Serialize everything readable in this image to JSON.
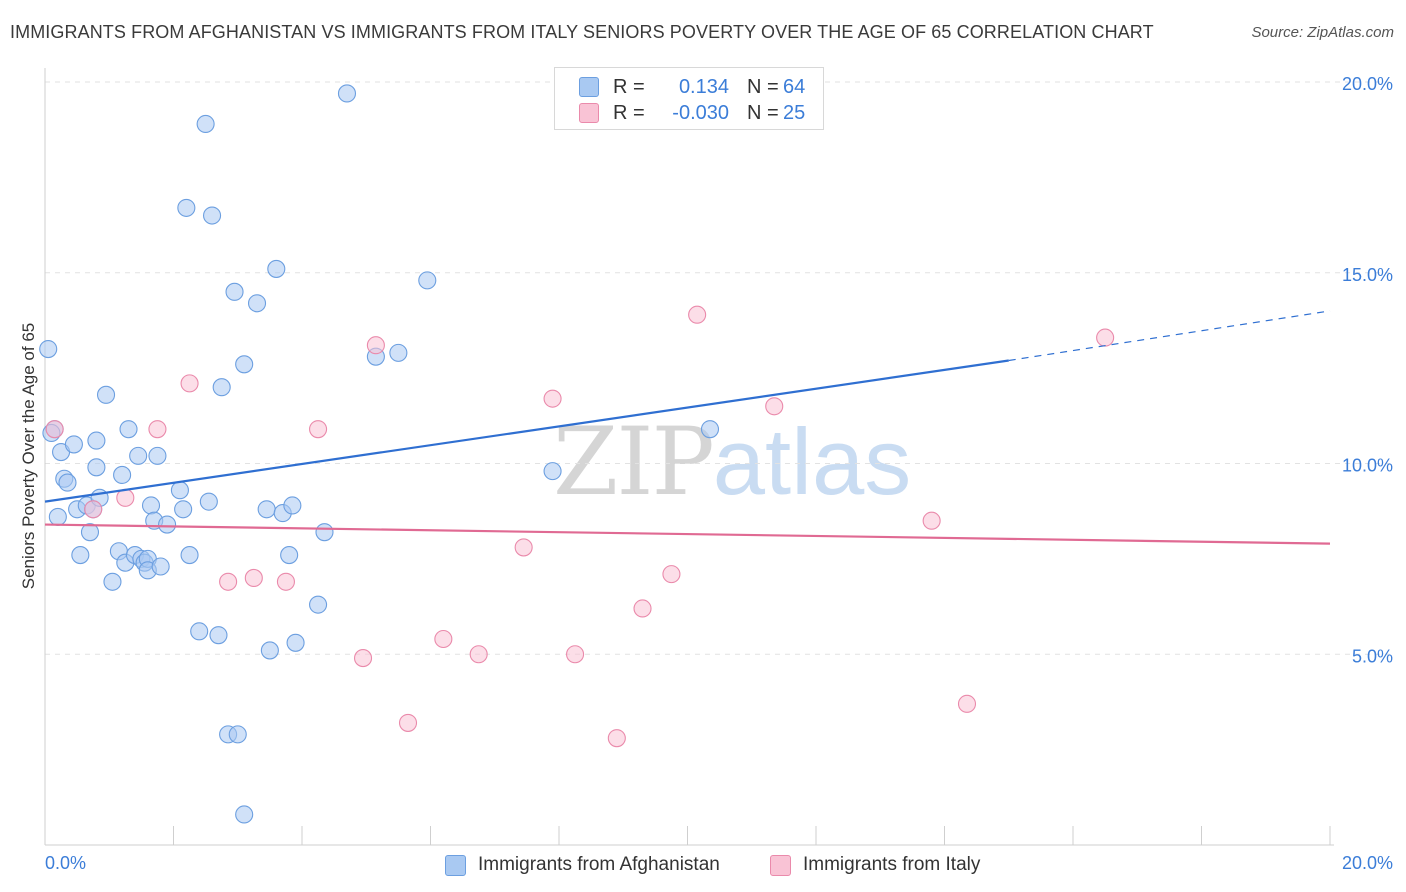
{
  "title": "IMMIGRANTS FROM AFGHANISTAN VS IMMIGRANTS FROM ITALY SENIORS POVERTY OVER THE AGE OF 65 CORRELATION CHART",
  "source": "Source: ZipAtlas.com",
  "watermark": {
    "zip": "ZIP",
    "atlas": "atlas"
  },
  "legend_top": [
    {
      "r_label": "R =",
      "r_value": "0.134",
      "n_label": "N =",
      "n_value": "64",
      "color": "#a9c9f2",
      "border": "#6c9fe0"
    },
    {
      "r_label": "R =",
      "r_value": "-0.030",
      "n_label": "N =",
      "n_value": "25",
      "color": "#f9c3d5",
      "border": "#ea8aab"
    }
  ],
  "legend_bottom": [
    {
      "label": "Immigrants from Afghanistan",
      "color": "#a9c9f2",
      "border": "#6c9fe0"
    },
    {
      "label": "Immigrants from Italy",
      "color": "#f9c3d5",
      "border": "#ea8aab"
    }
  ],
  "chart_data": {
    "type": "scatter",
    "title": "IMMIGRANTS FROM AFGHANISTAN VS IMMIGRANTS FROM ITALY SENIORS POVERTY OVER THE AGE OF 65 CORRELATION CHART",
    "xlabel": "",
    "ylabel": "Seniors Poverty Over the Age of 65",
    "xlim": [
      0,
      20
    ],
    "ylim": [
      0,
      20
    ],
    "x_tick_labels": [
      {
        "value": 0,
        "label": "0.0%"
      },
      {
        "value": 20,
        "label": "20.0%"
      }
    ],
    "y_tick_labels": [
      {
        "value": 5,
        "label": "5.0%"
      },
      {
        "value": 10,
        "label": "10.0%"
      },
      {
        "value": 15,
        "label": "15.0%"
      },
      {
        "value": 20,
        "label": "20.0%"
      }
    ],
    "grid": "horizontal dashed",
    "legend_placement": "bottom",
    "series": [
      {
        "name": "Immigrants from Afghanistan",
        "color": "#6c9fe0",
        "fill": "#a9c9f2",
        "trend": {
          "x": [
            0,
            15
          ],
          "y": [
            9.0,
            12.7
          ],
          "extended_dashed_to": [
            20,
            14.0
          ]
        },
        "points": [
          [
            0.05,
            13.0
          ],
          [
            0.15,
            10.9
          ],
          [
            0.2,
            8.6
          ],
          [
            0.25,
            10.3
          ],
          [
            0.3,
            9.6
          ],
          [
            0.35,
            9.5
          ],
          [
            0.45,
            10.5
          ],
          [
            0.5,
            8.8
          ],
          [
            0.55,
            7.6
          ],
          [
            0.65,
            8.9
          ],
          [
            0.7,
            8.2
          ],
          [
            0.75,
            8.8
          ],
          [
            0.8,
            9.9
          ],
          [
            0.8,
            10.6
          ],
          [
            0.85,
            9.1
          ],
          [
            0.95,
            11.8
          ],
          [
            1.05,
            6.9
          ],
          [
            1.15,
            7.7
          ],
          [
            1.2,
            9.7
          ],
          [
            1.25,
            7.4
          ],
          [
            1.3,
            10.9
          ],
          [
            1.4,
            7.6
          ],
          [
            1.45,
            10.2
          ],
          [
            1.5,
            7.5
          ],
          [
            1.55,
            7.4
          ],
          [
            1.6,
            7.5
          ],
          [
            1.6,
            7.2
          ],
          [
            1.65,
            8.9
          ],
          [
            1.7,
            8.5
          ],
          [
            1.75,
            10.2
          ],
          [
            1.8,
            7.3
          ],
          [
            1.9,
            8.4
          ],
          [
            2.1,
            9.3
          ],
          [
            2.15,
            8.8
          ],
          [
            2.2,
            16.7
          ],
          [
            2.25,
            7.6
          ],
          [
            2.4,
            5.6
          ],
          [
            2.5,
            18.9
          ],
          [
            2.55,
            9.0
          ],
          [
            2.6,
            16.5
          ],
          [
            2.7,
            5.5
          ],
          [
            2.75,
            12.0
          ],
          [
            2.85,
            2.9
          ],
          [
            2.95,
            14.5
          ],
          [
            3.0,
            2.9
          ],
          [
            3.1,
            0.8
          ],
          [
            3.1,
            12.6
          ],
          [
            3.3,
            14.2
          ],
          [
            3.45,
            8.8
          ],
          [
            3.5,
            5.1
          ],
          [
            3.6,
            15.1
          ],
          [
            3.7,
            8.7
          ],
          [
            3.8,
            7.6
          ],
          [
            3.85,
            8.9
          ],
          [
            3.9,
            5.3
          ],
          [
            4.25,
            6.3
          ],
          [
            4.35,
            8.2
          ],
          [
            4.7,
            19.7
          ],
          [
            5.15,
            12.8
          ],
          [
            5.5,
            12.9
          ],
          [
            5.95,
            14.8
          ],
          [
            7.9,
            9.8
          ],
          [
            10.35,
            10.9
          ],
          [
            0.1,
            10.8
          ]
        ]
      },
      {
        "name": "Immigrants from Italy",
        "color": "#ea8aab",
        "fill": "#f9c3d5",
        "trend": {
          "x": [
            0,
            20
          ],
          "y": [
            8.4,
            7.9
          ]
        },
        "points": [
          [
            0.15,
            10.9
          ],
          [
            0.75,
            8.8
          ],
          [
            1.25,
            9.1
          ],
          [
            1.75,
            10.9
          ],
          [
            2.25,
            12.1
          ],
          [
            2.85,
            6.9
          ],
          [
            3.25,
            7.0
          ],
          [
            3.75,
            6.9
          ],
          [
            4.25,
            10.9
          ],
          [
            4.95,
            4.9
          ],
          [
            5.15,
            13.1
          ],
          [
            5.65,
            3.2
          ],
          [
            6.2,
            5.4
          ],
          [
            6.75,
            5.0
          ],
          [
            7.45,
            7.8
          ],
          [
            7.9,
            11.7
          ],
          [
            8.25,
            5.0
          ],
          [
            8.9,
            2.8
          ],
          [
            9.3,
            6.2
          ],
          [
            9.75,
            7.1
          ],
          [
            10.15,
            13.9
          ],
          [
            11.35,
            11.5
          ],
          [
            13.8,
            8.5
          ],
          [
            14.35,
            3.7
          ],
          [
            16.5,
            13.3
          ]
        ]
      }
    ]
  }
}
